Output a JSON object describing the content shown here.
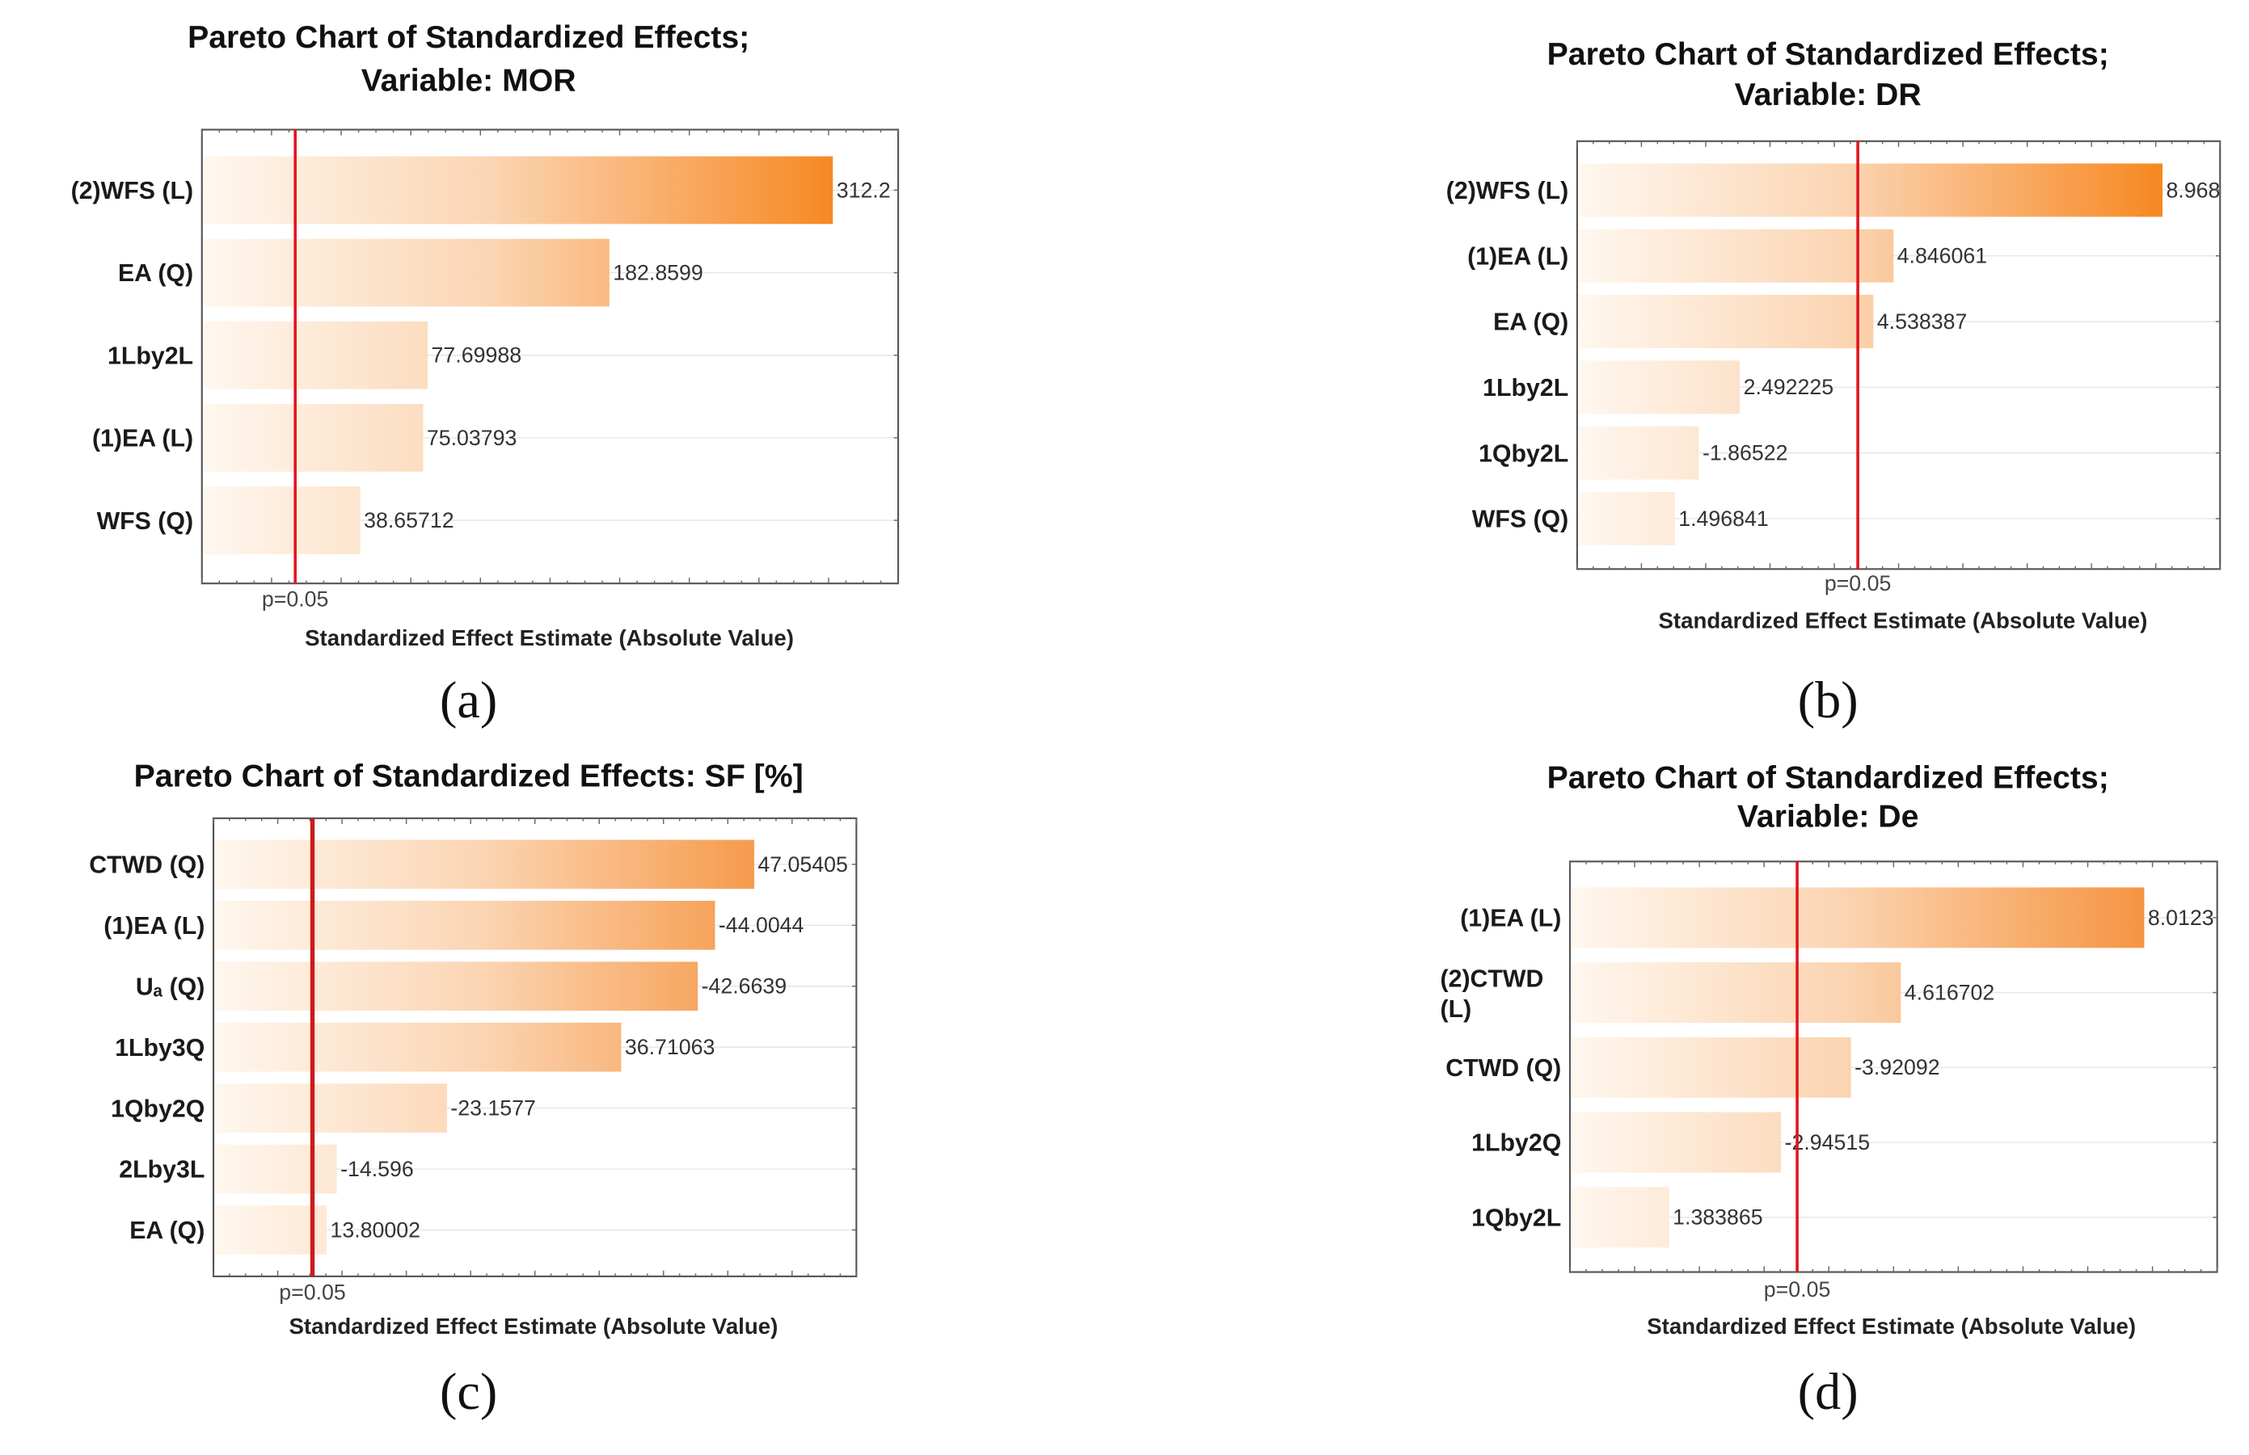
{
  "chart_data": [
    {
      "type": "bar",
      "orientation": "horizontal",
      "panel_label": "(a)",
      "title": [
        "Pareto Chart of Standardized Effects;",
        "Variable: MOR"
      ],
      "xlabel": "Standardized Effect Estimate (Absolute Value)",
      "xlim": [
        -53,
        350
      ],
      "reference_line": {
        "label": "p=0.05",
        "value": 1,
        "color": "#e0141e"
      },
      "categories": [
        "(2)WFS (L)",
        "EA (Q)",
        "1Lby2L",
        "(1)EA (L)",
        "WFS (Q)"
      ],
      "values": [
        312.2,
        182.8599,
        77.69988,
        75.03793,
        38.65712
      ],
      "value_labels": [
        "312.2",
        "182.8599",
        "77.69988",
        "75.03793",
        "38.65712"
      ],
      "bar_color": "#f7861f",
      "grid": true
    },
    {
      "type": "bar",
      "orientation": "horizontal",
      "panel_label": "(b)",
      "title": [
        "Pareto Chart of Standardized Effects;",
        "Variable: DR"
      ],
      "xlabel": "Standardized Effect Estimate (Absolute Value)",
      "xlim": [
        0,
        9.85
      ],
      "reference_line": {
        "label": "p=0.05",
        "value": 4.3,
        "color": "#e0141e"
      },
      "categories": [
        "(2)WFS (L)",
        "(1)EA (L)",
        "EA (Q)",
        "1Lby2L",
        "1Qby2L",
        "WFS (Q)"
      ],
      "values": [
        8.968,
        4.846061,
        4.538387,
        2.492225,
        1.86522,
        1.496841
      ],
      "value_labels": [
        "8.968",
        "4.846061",
        "4.538387",
        "2.492225",
        "-1.86522",
        "1.496841"
      ],
      "bar_color": "#f7861f",
      "grid": true
    },
    {
      "type": "bar",
      "orientation": "horizontal",
      "panel_label": "(c)",
      "title": [
        "Pareto Chart of Standardized Effects: SF [%]"
      ],
      "xlabel": "Standardized Effect Estimate (Absolute Value)",
      "xlim": [
        5,
        55
      ],
      "reference_line": {
        "label": "p=0.05",
        "value": 12.7,
        "color": "#cc1a1a"
      },
      "categories": [
        "CTWD (Q)",
        "(1)EA (L)",
        "Uₐ (Q)",
        "1Lby3Q",
        "1Qby2Q",
        "2Lby3L",
        "EA (Q)"
      ],
      "values": [
        47.05405,
        44.0044,
        42.6639,
        36.71063,
        23.1577,
        14.596,
        13.80002
      ],
      "value_labels": [
        "47.05405",
        "-44.0044",
        "-42.6639",
        "36.71063",
        "-23.1577",
        "-14.596",
        "13.80002"
      ],
      "bar_color": "#f5903a",
      "grid": true
    },
    {
      "type": "bar",
      "orientation": "horizontal",
      "panel_label": "(d)",
      "title": [
        "Pareto Chart of Standardized Effects;",
        "Variable: De"
      ],
      "xlabel": "Standardized Effect Estimate (Absolute Value)",
      "xlim": [
        0,
        9.03
      ],
      "reference_line": {
        "label": "p=0.05",
        "value": 3.17,
        "color": "#e0141e"
      },
      "categories": [
        "(1)EA (L)",
        "(2)CTWD (L)",
        "CTWD (Q)",
        "1Lby2Q",
        "1Qby2L"
      ],
      "values": [
        8.0123,
        4.616702,
        3.92092,
        2.94515,
        1.383865
      ],
      "value_labels": [
        "8.0123",
        "4.616702",
        "-3.92092",
        "-2.94515",
        "1.383865"
      ],
      "bar_color": "#f5903a",
      "grid": true
    }
  ]
}
